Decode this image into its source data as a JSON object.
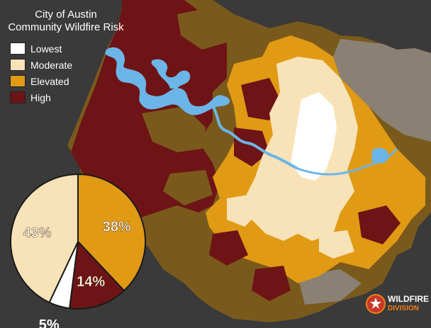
{
  "title": {
    "line1": "City of Austin",
    "line2": "Community Wildfire Risk"
  },
  "legend": [
    {
      "label": "Lowest",
      "color": "#ffffff"
    },
    {
      "label": "Moderate",
      "color": "#f8e3b8"
    },
    {
      "label": "Elevated",
      "color": "#e19a14"
    },
    {
      "label": "High",
      "color": "#6e1416"
    }
  ],
  "chart_data": {
    "type": "pie",
    "slices": [
      {
        "label": "38%",
        "value": 38,
        "color": "#e19a14"
      },
      {
        "label": "14%",
        "value": 14,
        "color": "#6e1416"
      },
      {
        "label": "5%",
        "value": 5,
        "color": "#ffffff"
      },
      {
        "label": "43%",
        "value": 43,
        "color": "#f8e3b8"
      }
    ]
  },
  "colors": {
    "background": "#3a3a3a",
    "water": "#6cb5e9",
    "brown": "#7a5a1c",
    "gray": "#8a8174"
  },
  "badge": {
    "line1": "WILDFIRE",
    "line2": "DIVISION"
  }
}
